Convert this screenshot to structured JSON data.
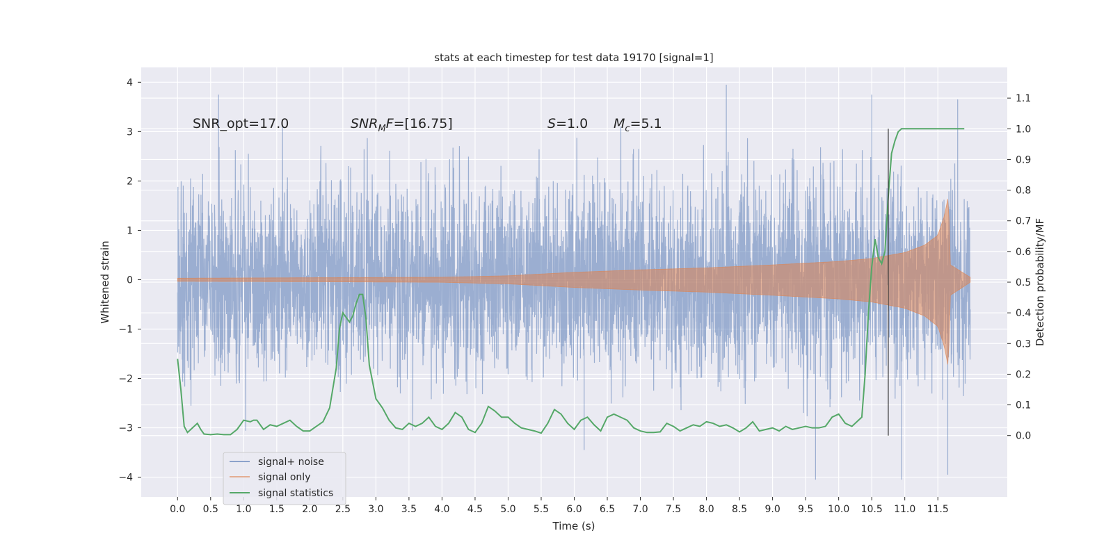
{
  "chart_data": {
    "type": "line",
    "title": "stats at each timestep for test data 19170 [signal=1]",
    "xlabel": "Time (s)",
    "ylabel": "Whitened strain",
    "y2label": "Detection probability/MF",
    "xlim": [
      -0.55,
      12.55
    ],
    "ylim": [
      -4.4,
      4.3
    ],
    "y2lim": [
      -0.2,
      1.2
    ],
    "x_ticks": [
      0.0,
      0.5,
      1.0,
      1.5,
      2.0,
      2.5,
      3.0,
      3.5,
      4.0,
      4.5,
      5.0,
      5.5,
      6.0,
      6.5,
      7.0,
      7.5,
      8.0,
      8.5,
      9.0,
      9.5,
      10.0,
      10.5,
      11.0,
      11.5
    ],
    "x_tick_labels": [
      "0.0",
      "0.5",
      "1.0",
      "1.5",
      "2.0",
      "2.5",
      "3.0",
      "3.5",
      "4.0",
      "4.5",
      "5.0",
      "5.5",
      "6.0",
      "6.5",
      "7.0",
      "7.5",
      "8.0",
      "8.5",
      "9.0",
      "9.5",
      "10.0",
      "10.5",
      "11.0",
      "11.5"
    ],
    "y_ticks": [
      -4,
      -3,
      -2,
      -1,
      0,
      1,
      2,
      3,
      4
    ],
    "y_tick_labels": [
      "−4",
      "−3",
      "−2",
      "−1",
      "0",
      "1",
      "2",
      "3",
      "4"
    ],
    "y2_ticks": [
      0.0,
      0.1,
      0.2,
      0.3,
      0.4,
      0.5,
      0.6,
      0.7,
      0.8,
      0.9,
      1.0,
      1.1
    ],
    "y2_tick_labels": [
      "0.0",
      "0.1",
      "0.2",
      "0.3",
      "0.4",
      "0.5",
      "0.6",
      "0.7",
      "0.8",
      "0.9",
      "1.0",
      "1.1"
    ],
    "grid": true,
    "legend_position": "lower-left",
    "annotations": [
      {
        "text": "SNR_opt=17.0",
        "x": 0.2,
        "y": 3.05
      },
      {
        "text": "SNR_MF=[16.75]",
        "x": 2.6,
        "y": 3.05
      },
      {
        "text": "S=1.0",
        "x": 5.6,
        "y": 3.05
      },
      {
        "text": "M_c=5.1",
        "x": 6.6,
        "y": 3.05
      }
    ],
    "vertical_marker": {
      "x": 10.75,
      "y2_range": [
        0.0,
        1.0
      ]
    },
    "series": [
      {
        "name": "signal+ noise",
        "color": "#4c72b0",
        "opacity": 0.5,
        "t_range": [
          0.0,
          11.99
        ],
        "envelope_typical": 2.0,
        "notable_peaks": [
          [
            0.62,
            3.75
          ],
          [
            8.3,
            3.95
          ],
          [
            10.5,
            3.75
          ],
          [
            11.8,
            3.65
          ],
          [
            10.95,
            -4.05
          ],
          [
            9.65,
            -4.05
          ],
          [
            11.65,
            -3.95
          ],
          [
            6.15,
            -3.45
          ]
        ]
      },
      {
        "name": "signal only",
        "color": "#dd8452",
        "opacity": 0.55,
        "t_range": [
          0.0,
          11.99
        ],
        "envelope": [
          [
            0.0,
            0.03
          ],
          [
            2.0,
            0.04
          ],
          [
            4.0,
            0.05
          ],
          [
            5.0,
            0.08
          ],
          [
            6.0,
            0.15
          ],
          [
            7.0,
            0.2
          ],
          [
            8.0,
            0.24
          ],
          [
            9.0,
            0.3
          ],
          [
            10.0,
            0.37
          ],
          [
            10.5,
            0.43
          ],
          [
            11.0,
            0.55
          ],
          [
            11.3,
            0.7
          ],
          [
            11.5,
            0.9
          ],
          [
            11.6,
            1.3
          ],
          [
            11.66,
            1.7
          ],
          [
            11.69,
            0.3
          ],
          [
            11.99,
            0.05
          ]
        ]
      },
      {
        "name": "signal statistics",
        "color": "#55a868",
        "axis": "right",
        "x": [
          0.0,
          0.05,
          0.1,
          0.15,
          0.2,
          0.3,
          0.35,
          0.4,
          0.5,
          0.6,
          0.7,
          0.8,
          0.9,
          1.0,
          1.1,
          1.15,
          1.2,
          1.3,
          1.4,
          1.5,
          1.6,
          1.7,
          1.8,
          1.9,
          2.0,
          2.1,
          2.2,
          2.3,
          2.4,
          2.45,
          2.5,
          2.6,
          2.65,
          2.7,
          2.75,
          2.8,
          2.85,
          2.9,
          3.0,
          3.1,
          3.2,
          3.3,
          3.4,
          3.5,
          3.6,
          3.7,
          3.8,
          3.9,
          4.0,
          4.1,
          4.2,
          4.3,
          4.4,
          4.5,
          4.6,
          4.7,
          4.8,
          4.9,
          5.0,
          5.1,
          5.2,
          5.3,
          5.4,
          5.5,
          5.6,
          5.7,
          5.8,
          5.9,
          6.0,
          6.1,
          6.2,
          6.3,
          6.4,
          6.5,
          6.6,
          6.7,
          6.8,
          6.9,
          7.0,
          7.1,
          7.2,
          7.3,
          7.4,
          7.5,
          7.6,
          7.7,
          7.8,
          7.9,
          8.0,
          8.1,
          8.2,
          8.3,
          8.4,
          8.5,
          8.6,
          8.7,
          8.8,
          8.9,
          9.0,
          9.1,
          9.2,
          9.3,
          9.4,
          9.5,
          9.6,
          9.7,
          9.8,
          9.9,
          10.0,
          10.1,
          10.2,
          10.3,
          10.35,
          10.4,
          10.45,
          10.5,
          10.55,
          10.6,
          10.65,
          10.7,
          10.75,
          10.8,
          10.85,
          10.9,
          10.95,
          11.0,
          11.1,
          11.2,
          11.3,
          11.4,
          11.5,
          11.6,
          11.7,
          11.8,
          11.9
        ],
        "values": [
          0.25,
          0.15,
          0.03,
          0.01,
          0.02,
          0.04,
          0.02,
          0.005,
          0.003,
          0.005,
          0.003,
          0.003,
          0.02,
          0.05,
          0.045,
          0.05,
          0.05,
          0.02,
          0.035,
          0.03,
          0.04,
          0.05,
          0.03,
          0.015,
          0.015,
          0.03,
          0.045,
          0.09,
          0.22,
          0.35,
          0.4,
          0.37,
          0.39,
          0.43,
          0.46,
          0.46,
          0.38,
          0.23,
          0.12,
          0.09,
          0.05,
          0.025,
          0.02,
          0.04,
          0.03,
          0.04,
          0.06,
          0.03,
          0.02,
          0.04,
          0.075,
          0.06,
          0.02,
          0.01,
          0.04,
          0.095,
          0.08,
          0.06,
          0.06,
          0.04,
          0.025,
          0.02,
          0.015,
          0.008,
          0.04,
          0.085,
          0.07,
          0.04,
          0.02,
          0.05,
          0.06,
          0.035,
          0.015,
          0.06,
          0.07,
          0.06,
          0.05,
          0.025,
          0.015,
          0.01,
          0.01,
          0.012,
          0.04,
          0.03,
          0.015,
          0.025,
          0.035,
          0.03,
          0.045,
          0.04,
          0.03,
          0.035,
          0.025,
          0.012,
          0.025,
          0.045,
          0.015,
          0.02,
          0.025,
          0.015,
          0.03,
          0.02,
          0.025,
          0.03,
          0.025,
          0.025,
          0.03,
          0.06,
          0.07,
          0.04,
          0.03,
          0.05,
          0.06,
          0.2,
          0.4,
          0.55,
          0.64,
          0.58,
          0.56,
          0.6,
          0.78,
          0.92,
          0.96,
          0.99,
          1.0,
          1.0,
          1.0,
          1.0,
          1.0,
          1.0,
          1.0,
          1.0,
          1.0,
          1.0,
          1.0
        ]
      }
    ]
  }
}
